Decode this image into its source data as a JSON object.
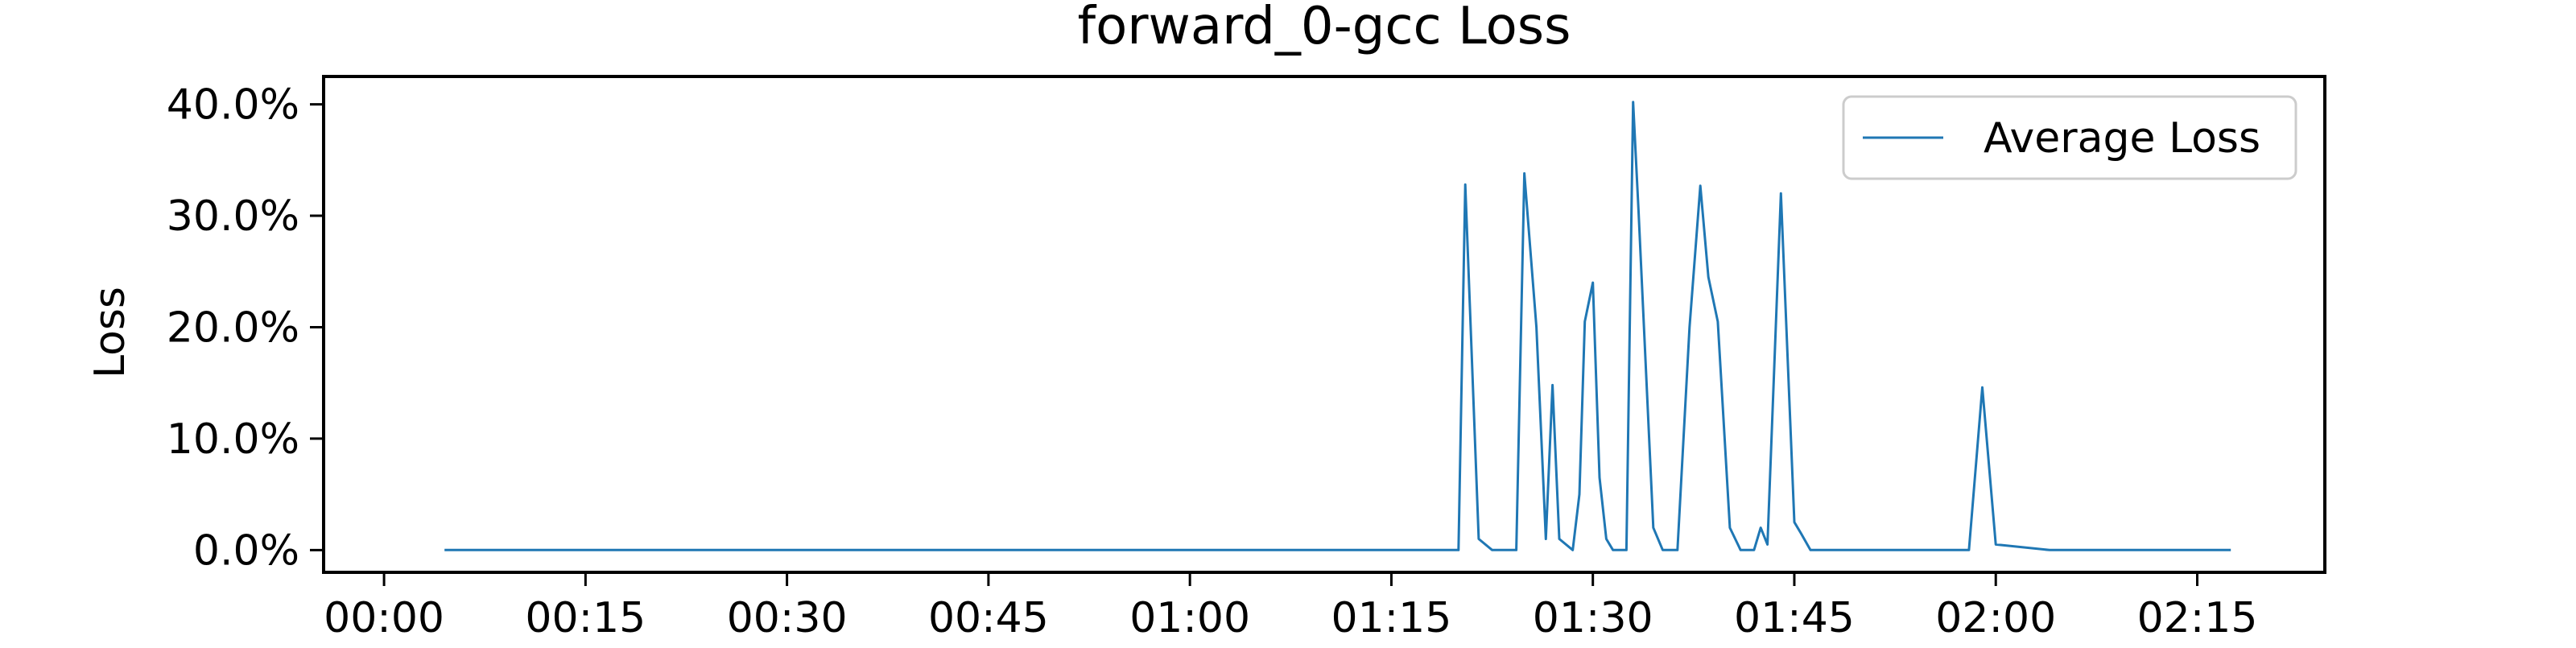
{
  "chart_data": {
    "type": "line",
    "title": "forward_0-gcc Loss",
    "xlabel": "",
    "ylabel": "Loss",
    "x_tick_labels": [
      "00:00",
      "00:15",
      "00:30",
      "00:45",
      "01:00",
      "01:15",
      "01:30",
      "01:45",
      "02:00",
      "02:15"
    ],
    "y_tick_labels": [
      "0.0%",
      "10.0%",
      "20.0%",
      "30.0%",
      "40.0%"
    ],
    "x_unit": "minutes",
    "xlim": [
      -4.5,
      144.5
    ],
    "ylim": [
      -2.0,
      42.5
    ],
    "grid": false,
    "legend_position": "top-right",
    "series": [
      {
        "name": "Average Loss",
        "color": "#1f77b4",
        "x": [
          4.5,
          80.0,
          80.5,
          81.5,
          82.5,
          83.0,
          84.3,
          84.9,
          85.8,
          86.5,
          87.0,
          87.5,
          88.5,
          89.0,
          89.4,
          90.0,
          90.5,
          91.0,
          91.5,
          92.0,
          92.5,
          93.0,
          93.4,
          94.5,
          95.2,
          96.0,
          96.3,
          97.2,
          98.0,
          98.6,
          99.3,
          100.2,
          101.0,
          101.5,
          102.0,
          102.5,
          103.0,
          104.0,
          105.0,
          105.5,
          106.2,
          107.0,
          108.0,
          116.0,
          118.0,
          119.0,
          120.0,
          124.0,
          136.0,
          137.5
        ],
        "y": [
          0.0,
          0.0,
          32.8,
          1.0,
          0.0,
          0.0,
          0.0,
          33.8,
          20.0,
          1.0,
          14.8,
          1.0,
          0.0,
          5.0,
          20.5,
          24.0,
          6.5,
          1.0,
          0.0,
          0.0,
          0.0,
          40.2,
          30.5,
          2.0,
          0.0,
          0.0,
          0.0,
          20.0,
          32.7,
          24.5,
          20.5,
          2.0,
          0.0,
          0.0,
          0.0,
          2.0,
          0.5,
          32.0,
          2.5,
          1.5,
          0.0,
          0.0,
          0.0,
          0.0,
          0.0,
          14.6,
          0.5,
          0.0,
          0.0,
          0.0
        ]
      }
    ]
  }
}
